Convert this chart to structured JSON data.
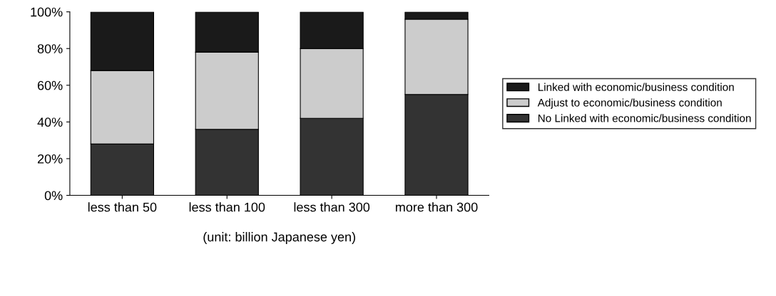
{
  "chart_data": {
    "type": "bar",
    "stacked": true,
    "categories": [
      "less than 50",
      "less than 100",
      "less than 300",
      "more than 300"
    ],
    "series": [
      {
        "name": "No Linked with economic/business condition",
        "color": "#333333",
        "values": [
          28,
          36,
          42,
          55
        ]
      },
      {
        "name": "Adjust to economic/business condition",
        "color": "#cccccc",
        "values": [
          40,
          42,
          38,
          41
        ]
      },
      {
        "name": "Linked with economic/business condition",
        "color": "#1a1a1a",
        "values": [
          32,
          22,
          20,
          4
        ]
      }
    ],
    "ylim": [
      0,
      100
    ],
    "yticks": [
      {
        "value": 0,
        "label": "0%"
      },
      {
        "value": 20,
        "label": "20%"
      },
      {
        "value": 40,
        "label": "40%"
      },
      {
        "value": 60,
        "label": "60%"
      },
      {
        "value": 80,
        "label": "80%"
      },
      {
        "value": 100,
        "label": "100%"
      }
    ],
    "xlabel": "(unit: billion Japanese yen)",
    "legend": "right",
    "grid": false
  }
}
